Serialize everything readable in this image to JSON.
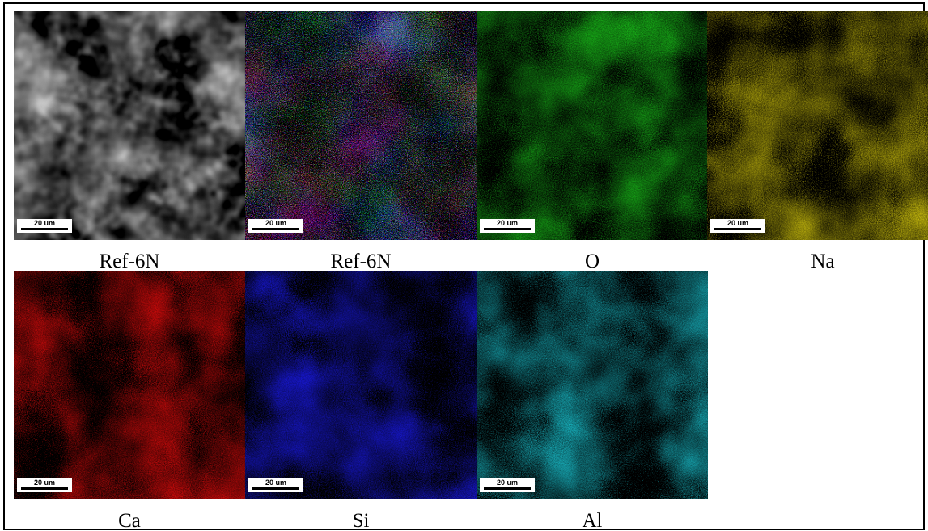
{
  "panels": [
    {
      "label": "Ref-6N",
      "scale_bar": "20 um"
    },
    {
      "label": "Ref-6N",
      "scale_bar": "20 um"
    },
    {
      "label": "O",
      "scale_bar": "20 um"
    },
    {
      "label": "Na",
      "scale_bar": "20 um"
    },
    {
      "label": "Ca",
      "scale_bar": "20 um"
    },
    {
      "label": "Si",
      "scale_bar": "20 um"
    },
    {
      "label": "Al",
      "scale_bar": "20 um"
    }
  ]
}
